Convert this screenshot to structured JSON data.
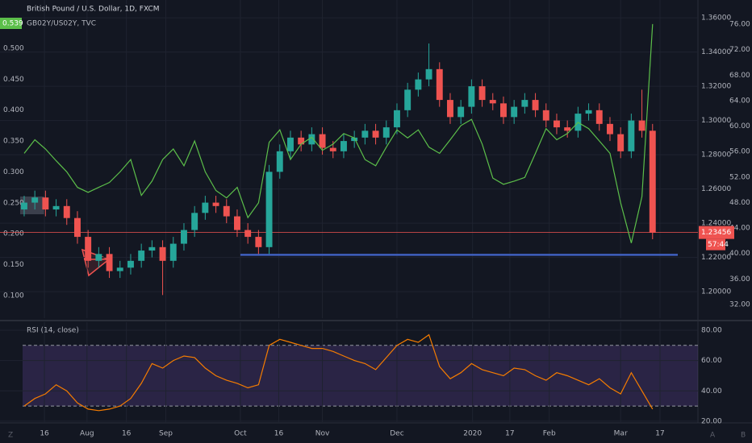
{
  "chart_data": [
    {
      "type": "candlestick",
      "title": "British Pound / U.S. Dollar, 1D, FXCM",
      "subtitle": "GB02Y/US02Y, TVC",
      "countdown": "57:44",
      "up_color": "#26a69a",
      "down_color": "#ef5350",
      "open": [
        1.248,
        1.252,
        1.255,
        1.248,
        1.25,
        1.243,
        1.232,
        1.218,
        1.222,
        1.212,
        1.214,
        1.218,
        1.224,
        1.226,
        1.218,
        1.228,
        1.236,
        1.246,
        1.252,
        1.25,
        1.244,
        1.236,
        1.232,
        1.226,
        1.27,
        1.282,
        1.29,
        1.286,
        1.292,
        1.284,
        1.282,
        1.288,
        1.29,
        1.294,
        1.29,
        1.296,
        1.306,
        1.318,
        1.324,
        1.33,
        1.312,
        1.302,
        1.308,
        1.32,
        1.312,
        1.31,
        1.302,
        1.308,
        1.312,
        1.306,
        1.3,
        1.296,
        1.294,
        1.304,
        1.306,
        1.298,
        1.292,
        1.282,
        1.3,
        1.294
      ],
      "high": [
        1.256,
        1.259,
        1.259,
        1.254,
        1.254,
        1.247,
        1.236,
        1.226,
        1.226,
        1.218,
        1.222,
        1.228,
        1.23,
        1.23,
        1.232,
        1.24,
        1.25,
        1.256,
        1.256,
        1.254,
        1.248,
        1.24,
        1.236,
        1.274,
        1.286,
        1.294,
        1.294,
        1.296,
        1.296,
        1.288,
        1.292,
        1.294,
        1.298,
        1.298,
        1.3,
        1.31,
        1.322,
        1.328,
        1.345,
        1.334,
        1.316,
        1.312,
        1.324,
        1.324,
        1.316,
        1.314,
        1.312,
        1.316,
        1.316,
        1.31,
        1.304,
        1.3,
        1.308,
        1.31,
        1.31,
        1.302,
        1.296,
        1.304,
        1.318,
        1.298
      ],
      "low": [
        1.244,
        1.248,
        1.244,
        1.244,
        1.239,
        1.228,
        1.214,
        1.214,
        1.208,
        1.208,
        1.21,
        1.214,
        1.22,
        1.198,
        1.214,
        1.224,
        1.232,
        1.242,
        1.246,
        1.24,
        1.232,
        1.228,
        1.222,
        1.222,
        1.266,
        1.278,
        1.282,
        1.282,
        1.28,
        1.278,
        1.278,
        1.284,
        1.286,
        1.286,
        1.286,
        1.292,
        1.302,
        1.314,
        1.32,
        1.308,
        1.298,
        1.298,
        1.304,
        1.308,
        1.306,
        1.298,
        1.298,
        1.304,
        1.302,
        1.296,
        1.292,
        1.29,
        1.29,
        1.3,
        1.294,
        1.288,
        1.278,
        1.278,
        1.29,
        1.2306
      ],
      "close": [
        1.252,
        1.255,
        1.248,
        1.25,
        1.243,
        1.232,
        1.218,
        1.222,
        1.212,
        1.214,
        1.218,
        1.224,
        1.226,
        1.218,
        1.228,
        1.236,
        1.246,
        1.252,
        1.25,
        1.244,
        1.236,
        1.232,
        1.226,
        1.27,
        1.282,
        1.29,
        1.286,
        1.292,
        1.284,
        1.282,
        1.288,
        1.29,
        1.294,
        1.29,
        1.296,
        1.306,
        1.318,
        1.324,
        1.33,
        1.312,
        1.302,
        1.308,
        1.32,
        1.312,
        1.31,
        1.302,
        1.308,
        1.312,
        1.306,
        1.3,
        1.296,
        1.294,
        1.304,
        1.306,
        1.298,
        1.292,
        1.282,
        1.3,
        1.294,
        1.23456
      ],
      "overlay": {
        "color": "#5cbf4a",
        "axis": "yleft",
        "values": [
          0.33,
          0.352,
          0.337,
          0.318,
          0.3,
          0.275,
          0.267,
          0.275,
          0.283,
          0.3,
          0.32,
          0.262,
          0.285,
          0.32,
          0.337,
          0.31,
          0.35,
          0.3,
          0.27,
          0.258,
          0.275,
          0.226,
          0.25,
          0.348,
          0.368,
          0.32,
          0.345,
          0.356,
          0.335,
          0.345,
          0.362,
          0.355,
          0.32,
          0.31,
          0.34,
          0.368,
          0.355,
          0.368,
          0.34,
          0.33,
          0.352,
          0.375,
          0.385,
          0.345,
          0.29,
          0.28,
          0.285,
          0.291,
          0.33,
          0.37,
          0.352,
          0.362,
          0.38,
          0.37,
          0.35,
          0.33,
          0.25,
          0.185,
          0.26,
          0.539
        ]
      },
      "support_line": {
        "value": 1.2215,
        "color": "#3f5fbf"
      },
      "xlim": [
        -2.27,
        63.26
      ],
      "ylim": [
        1.1845,
        1.3704
      ],
      "yticks": [
        {
          "value": 1.2,
          "label": "1.20000"
        },
        {
          "value": 1.22,
          "label": "1.22000"
        },
        {
          "value": 1.24,
          "label": "1.24000"
        },
        {
          "value": 1.26,
          "label": "1.26000"
        },
        {
          "value": 1.28,
          "label": "1.28000"
        },
        {
          "value": 1.3,
          "label": "1.30000"
        },
        {
          "value": 1.32,
          "label": "1.32000"
        },
        {
          "value": 1.34,
          "label": "1.34000"
        },
        {
          "value": 1.36,
          "label": "1.36000"
        }
      ],
      "yleftlim": [
        0.0635,
        0.578
      ],
      "yleftticks": [
        {
          "value": 0.1,
          "label": "0.100"
        },
        {
          "value": 0.15,
          "label": "0.150"
        },
        {
          "value": 0.2,
          "label": "0.200"
        },
        {
          "value": 0.25,
          "label": "0.250"
        },
        {
          "value": 0.3,
          "label": "0.300"
        },
        {
          "value": 0.35,
          "label": "0.350"
        },
        {
          "value": 0.4,
          "label": "0.400"
        },
        {
          "value": 0.45,
          "label": "0.450"
        },
        {
          "value": 0.5,
          "label": "0.500"
        }
      ],
      "y3lim": [
        29.85,
        79.79
      ],
      "y3ticks": [
        {
          "value": 32,
          "label": "32.00"
        },
        {
          "value": 36,
          "label": "36.00"
        },
        {
          "value": 40,
          "label": "40.00"
        },
        {
          "value": 44,
          "label": "44.00"
        },
        {
          "value": 48,
          "label": "48.00"
        },
        {
          "value": 52,
          "label": "52.00"
        },
        {
          "value": 56,
          "label": "56.00"
        },
        {
          "value": 60,
          "label": "60.00"
        },
        {
          "value": 64,
          "label": "64.00"
        },
        {
          "value": 68,
          "label": "68.00"
        },
        {
          "value": 72,
          "label": "72.00"
        },
        {
          "value": 76,
          "label": "76.00"
        }
      ],
      "grid": true
    },
    {
      "type": "line",
      "title": "RSI (14, close)",
      "color": "#f57c00",
      "band": [
        30,
        70
      ],
      "values": [
        30,
        35,
        38,
        44,
        40,
        32,
        28,
        27,
        28,
        30,
        35,
        45,
        58,
        55,
        60,
        63,
        62,
        55,
        50,
        47,
        45,
        42,
        44,
        70,
        74,
        72,
        70,
        68,
        68,
        66,
        63,
        60,
        58,
        54,
        62,
        70,
        74,
        72,
        77,
        56,
        48,
        52,
        58,
        54,
        52,
        50,
        55,
        54,
        50,
        47,
        52,
        50,
        47,
        44,
        48,
        42,
        38,
        52,
        40,
        28
      ],
      "xlim": [
        -2.27,
        63.26
      ],
      "ylim": [
        18.9,
        85.3
      ],
      "yticks": [
        {
          "value": 20,
          "label": "20.00"
        },
        {
          "value": 40,
          "label": "40.00"
        },
        {
          "value": 60,
          "label": "60.00"
        },
        {
          "value": 80,
          "label": "80.00"
        }
      ],
      "xticks": [
        {
          "value": 1.9,
          "label": "16"
        },
        {
          "value": 5.9,
          "label": "Aug"
        },
        {
          "value": 9.6,
          "label": "16"
        },
        {
          "value": 13.3,
          "label": "Sep"
        },
        {
          "value": 20.3,
          "label": "Oct"
        },
        {
          "value": 23.9,
          "label": "16"
        },
        {
          "value": 28,
          "label": "Nov"
        },
        {
          "value": 35,
          "label": "Dec"
        },
        {
          "value": 42.1,
          "label": "2020"
        },
        {
          "value": 45.6,
          "label": "17"
        },
        {
          "value": 49.3,
          "label": "Feb"
        },
        {
          "value": 56,
          "label": "Mar"
        },
        {
          "value": 59.7,
          "label": "17"
        }
      ],
      "toolbar": [
        "Z",
        "A",
        "B"
      ]
    }
  ]
}
